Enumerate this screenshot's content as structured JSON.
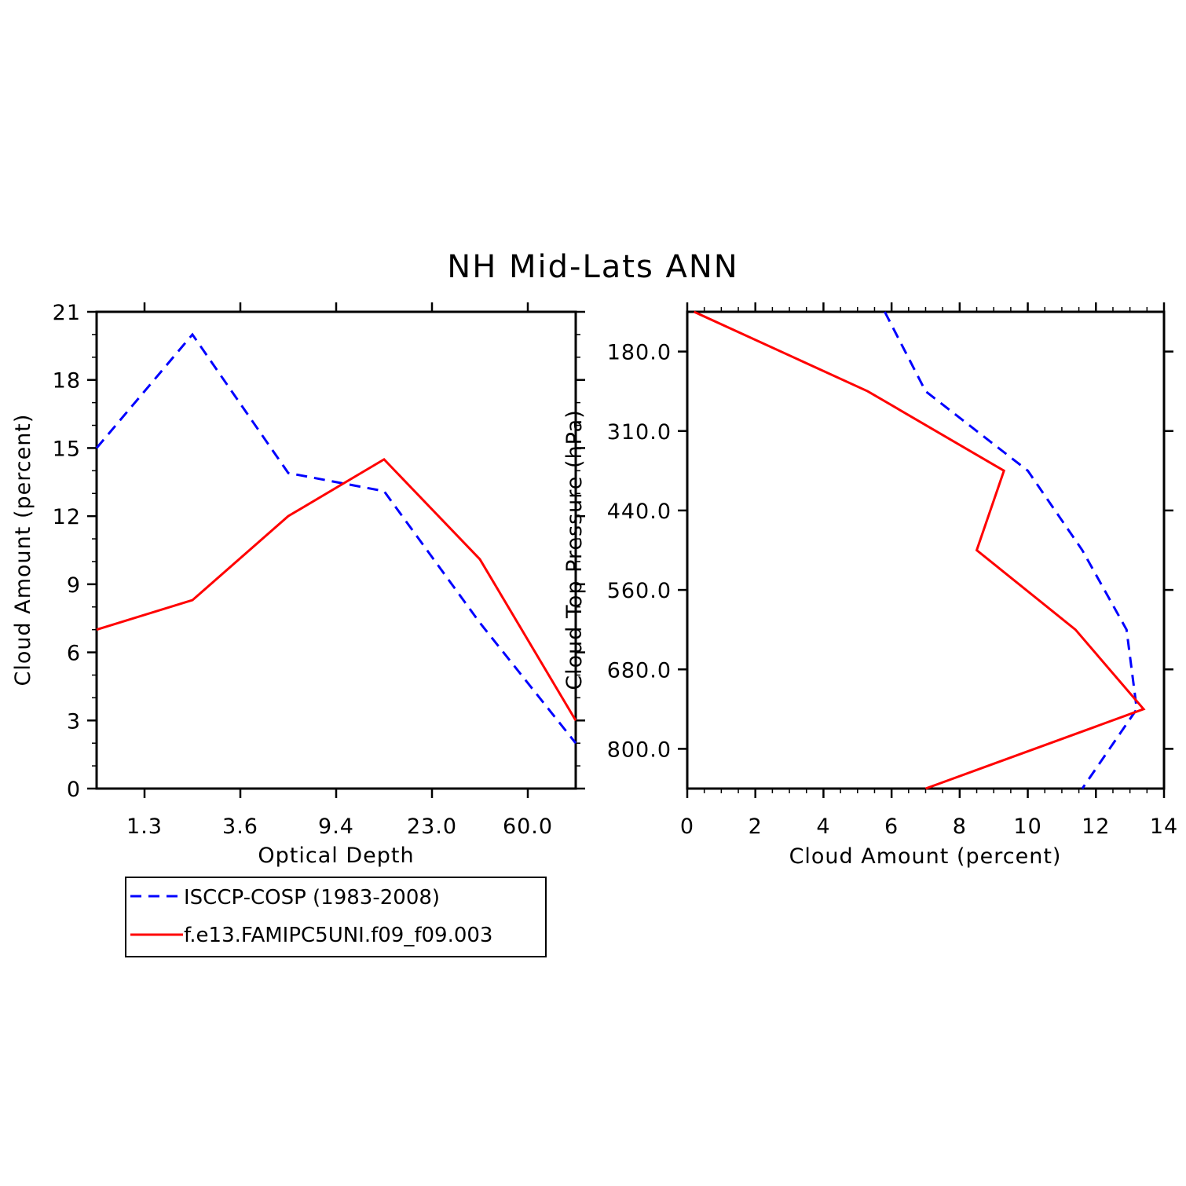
{
  "figure": {
    "title": "NH Mid-Lats ANN"
  },
  "colors": {
    "obs": "#0000ff",
    "model": "#ff0000"
  },
  "legend": {
    "entries": [
      {
        "label": "ISCCP-COSP (1983-2008)",
        "color": "#0000ff",
        "style": "dashed"
      },
      {
        "label": "f.e13.FAMIPC5UNI.f09_f09.003",
        "color": "#ff0000",
        "style": "solid"
      }
    ],
    "placement": "below left panel"
  },
  "chart_data": [
    {
      "type": "line",
      "xlabel": "Optical Depth",
      "ylabel": "Cloud Amount (percent)",
      "x_scale": "bin index",
      "x_tick_labels": [
        "1.3",
        "3.6",
        "9.4",
        "23.0",
        "60.0"
      ],
      "ylim": [
        0,
        21
      ],
      "y_ticks": [
        0,
        3,
        6,
        9,
        12,
        15,
        18,
        21
      ],
      "series": [
        {
          "name": "ISCCP-COSP (1983-2008)",
          "values": [
            15.0,
            20.0,
            13.9,
            13.1,
            7.3,
            2.0
          ]
        },
        {
          "name": "f.e13.FAMIPC5UNI.f09_f09.003",
          "values": [
            7.0,
            8.3,
            12.0,
            14.5,
            10.1,
            3.0
          ]
        }
      ]
    },
    {
      "type": "line",
      "orientation": "horizontal",
      "xlabel": "Cloud Amount (percent)",
      "ylabel": "Cloud Top Pressure (hPa)",
      "xlim": [
        0,
        14
      ],
      "x_ticks": [
        0,
        2,
        4,
        6,
        8,
        10,
        12,
        14
      ],
      "y_tick_labels": [
        "180.0",
        "310.0",
        "440.0",
        "560.0",
        "680.0",
        "800.0"
      ],
      "series": [
        {
          "name": "ISCCP-COSP (1983-2008)",
          "values": [
            5.8,
            7.0,
            10.0,
            11.6,
            12.9,
            13.2,
            11.6
          ]
        },
        {
          "name": "f.e13.FAMIPC5UNI.f09_f09.003",
          "values": [
            0.2,
            5.3,
            9.3,
            8.5,
            11.4,
            13.4,
            7.0
          ]
        }
      ]
    }
  ]
}
